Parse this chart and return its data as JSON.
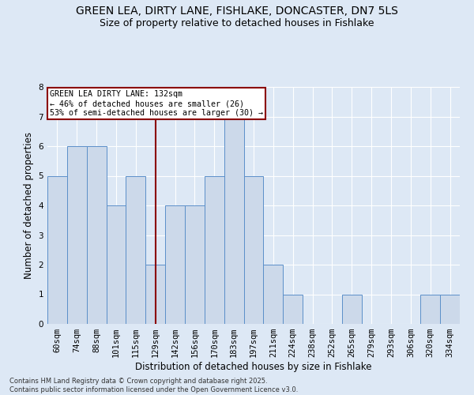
{
  "title_line1": "GREEN LEA, DIRTY LANE, FISHLAKE, DONCASTER, DN7 5LS",
  "title_line2": "Size of property relative to detached houses in Fishlake",
  "xlabel": "Distribution of detached houses by size in Fishlake",
  "ylabel": "Number of detached properties",
  "bin_labels": [
    "60sqm",
    "74sqm",
    "88sqm",
    "101sqm",
    "115sqm",
    "129sqm",
    "142sqm",
    "156sqm",
    "170sqm",
    "183sqm",
    "197sqm",
    "211sqm",
    "224sqm",
    "238sqm",
    "252sqm",
    "265sqm",
    "279sqm",
    "293sqm",
    "306sqm",
    "320sqm",
    "334sqm"
  ],
  "bar_heights": [
    5,
    6,
    6,
    4,
    5,
    2,
    4,
    4,
    5,
    7,
    5,
    2,
    1,
    0,
    0,
    1,
    0,
    0,
    0,
    1,
    1
  ],
  "bar_color": "#ccd9ea",
  "bar_edge_color": "#5b8fc9",
  "vline_x": 5,
  "vline_color": "#8b0000",
  "annotation_text": "GREEN LEA DIRTY LANE: 132sqm\n← 46% of detached houses are smaller (26)\n53% of semi-detached houses are larger (30) →",
  "annotation_box_edgecolor": "#8b0000",
  "ylim": [
    0,
    8
  ],
  "yticks": [
    0,
    1,
    2,
    3,
    4,
    5,
    6,
    7,
    8
  ],
  "footer_text": "Contains HM Land Registry data © Crown copyright and database right 2025.\nContains public sector information licensed under the Open Government Licence v3.0.",
  "bg_color": "#dde8f5",
  "plot_bg_color": "#dde8f5",
  "title_fontsize": 10,
  "subtitle_fontsize": 9,
  "axis_label_fontsize": 8.5,
  "tick_fontsize": 7.5,
  "footer_fontsize": 6
}
